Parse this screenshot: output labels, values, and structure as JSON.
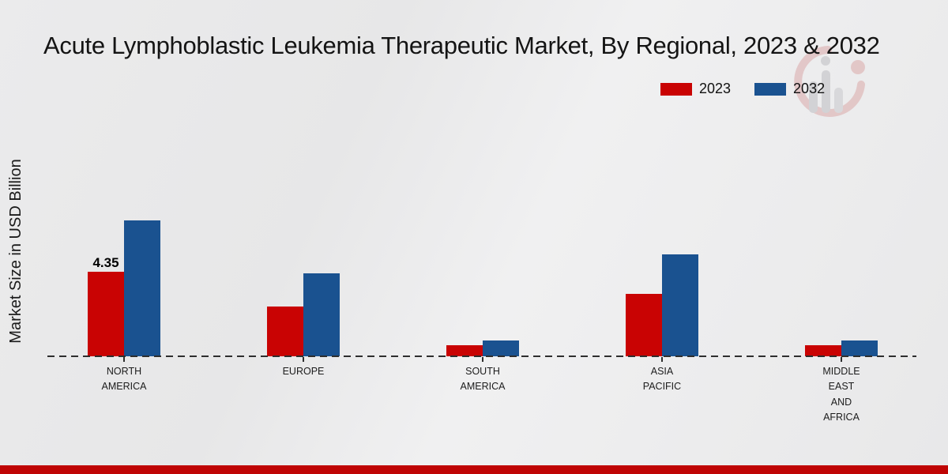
{
  "title": "Acute Lymphoblastic Leukemia Therapeutic Market, By Regional, 2023 & 2032",
  "y_axis_label": "Market Size in USD Billion",
  "legend": [
    {
      "label": "2023",
      "color": "#c90303"
    },
    {
      "label": "2032",
      "color": "#1a5290"
    }
  ],
  "colors": {
    "series_2023": "#c90303",
    "series_2032": "#1a5290",
    "bottom_band": "#bf0404",
    "background": "#e9e9ea",
    "axis": "#2e2e2e"
  },
  "watermark": {
    "name": "chart-logo-watermark"
  },
  "chart_data": {
    "type": "bar",
    "title": "Acute Lymphoblastic Leukemia Therapeutic Market, By Regional, 2023 & 2032",
    "xlabel": "",
    "ylabel": "Market Size in USD Billion",
    "categories": [
      "NORTH AMERICA",
      "EUROPE",
      "SOUTH AMERICA",
      "ASIA PACIFIC",
      "MIDDLE EAST AND AFRICA"
    ],
    "category_lines": [
      [
        "NORTH",
        "AMERICA"
      ],
      [
        "EUROPE"
      ],
      [
        "SOUTH",
        "AMERICA"
      ],
      [
        "ASIA",
        "PACIFIC"
      ],
      [
        "MIDDLE",
        "EAST",
        "AND",
        "AFRICA"
      ]
    ],
    "series": [
      {
        "name": "2023",
        "color": "#c90303",
        "values": [
          4.35,
          2.55,
          0.55,
          3.2,
          0.55
        ],
        "labels": [
          "4.35",
          "",
          "",
          "",
          ""
        ]
      },
      {
        "name": "2032",
        "color": "#1a5290",
        "values": [
          7.0,
          4.25,
          0.8,
          5.25,
          0.8
        ],
        "labels": [
          "",
          "",
          "",
          "",
          ""
        ]
      }
    ],
    "ylim": [
      0,
      7.5
    ],
    "grid": false,
    "legend_position": "top-right",
    "baseline_style": "dashed"
  }
}
